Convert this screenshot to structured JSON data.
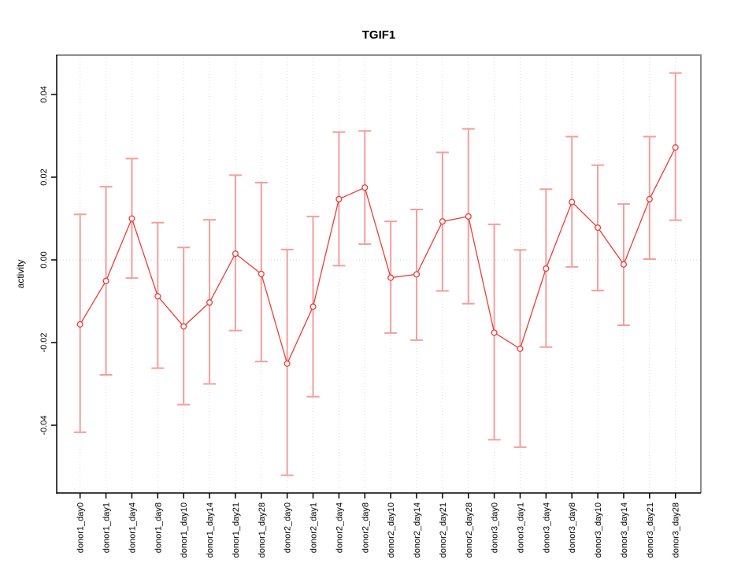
{
  "figure": {
    "title": "TGIF1",
    "background": "#ffffff"
  },
  "chart_data": {
    "type": "line",
    "title": "TGIF1",
    "xlabel": "",
    "ylabel": "activity",
    "legend": "none",
    "marker": "open-circle",
    "error_bars": true,
    "grid": {
      "vertical_dotted_per_category": true,
      "horizontal_zero_line_dotted": true
    },
    "ylim": [
      -0.053,
      0.048
    ],
    "yticks": [
      -0.04,
      -0.02,
      0,
      0.02,
      0.04
    ],
    "ytick_labels": [
      "-0.04",
      "-0.02",
      "0.00",
      "0.02",
      "0.04"
    ],
    "categories": [
      "donor1_day0",
      "donor1_day1",
      "donor1_day4",
      "donor1_day8",
      "donor1_day10",
      "donor1_day14",
      "donor1_day21",
      "donor1_day28",
      "donor2_day0",
      "donor2_day1",
      "donor2_day4",
      "donor2_day8",
      "donor2_day10",
      "donor2_day14",
      "donor2_day21",
      "donor2_day28",
      "donor3_day0",
      "donor3_day1",
      "donor3_day4",
      "donor3_day8",
      "donor3_day10",
      "donor3_day14",
      "donor3_day21",
      "donor3_day28"
    ],
    "series": [
      {
        "name": "TGIF1 activity",
        "values": [
          -0.0156,
          -0.0051,
          0.01,
          -0.0088,
          -0.0161,
          -0.0103,
          0.0015,
          -0.0034,
          -0.0251,
          -0.0113,
          0.0147,
          0.0175,
          -0.0043,
          -0.0035,
          0.0093,
          0.0105,
          -0.0176,
          -0.0215,
          -0.0021,
          0.014,
          0.0078,
          -0.0011,
          0.0147,
          0.0272
        ],
        "lower": [
          -0.0417,
          -0.0278,
          -0.0044,
          -0.0262,
          -0.035,
          -0.03,
          -0.0171,
          -0.0246,
          -0.0521,
          -0.0331,
          -0.0014,
          0.0038,
          -0.0177,
          -0.0194,
          -0.0075,
          -0.0106,
          -0.0435,
          -0.0453,
          -0.0211,
          -0.0017,
          -0.0074,
          -0.0158,
          0.0002,
          0.0096
        ],
        "upper": [
          0.011,
          0.0177,
          0.0245,
          0.009,
          0.003,
          0.0097,
          0.0205,
          0.0187,
          0.0025,
          0.0105,
          0.0309,
          0.0312,
          0.0093,
          0.0122,
          0.026,
          0.0317,
          0.0086,
          0.0024,
          0.0171,
          0.0298,
          0.0229,
          0.0135,
          0.0298,
          0.0452
        ]
      }
    ],
    "colors": {
      "line": "#ee3c37",
      "marker_stroke": "#ee3c37",
      "marker_fill": "#ffffff",
      "errorbar": "#f69d9d",
      "grid": "#d9d9d9",
      "zero_line": "#d4d4d4",
      "axis": "#000000",
      "box": "#8e8e8e",
      "text": "#000000"
    }
  }
}
